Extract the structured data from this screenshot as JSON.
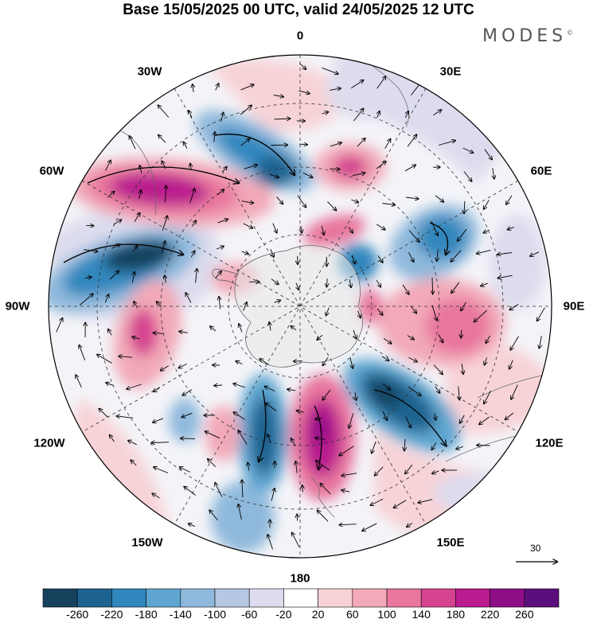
{
  "title": "Base 15/05/2025 00 UTC, valid 24/05/2025 12 UTC",
  "logo": "MODES",
  "logo_mark": "©",
  "longitude_labels": {
    "lon_0": "0",
    "lon_30e": "30E",
    "lon_60e": "60E",
    "lon_90e": "90E",
    "lon_120e": "120E",
    "lon_150e": "150E",
    "lon_180": "180",
    "lon_150w": "150W",
    "lon_120w": "120W",
    "lon_90w": "90W",
    "lon_60w": "60W",
    "lon_30w": "30W"
  },
  "reference_vector": "30",
  "colorbar": {
    "ticks": [
      "-260",
      "-220",
      "-180",
      "-140",
      "-100",
      "-60",
      "-20",
      "20",
      "60",
      "100",
      "140",
      "180",
      "220",
      "260"
    ],
    "colors": [
      "#16425e",
      "#1d6390",
      "#3187bd",
      "#5ea6d0",
      "#8fb9dc",
      "#b6c7e4",
      "#dcdcee",
      "#ffffff",
      "#f7d3d7",
      "#f2a9b8",
      "#e8769e",
      "#d5438f",
      "#ba1b8e",
      "#8e0e87",
      "#5b0f7c"
    ]
  },
  "map": {
    "projection": "south-polar-stereographic",
    "features": [
      {
        "name": "ridge-60w",
        "sign": "positive",
        "lon": -60,
        "r": 0.64,
        "level": 5
      },
      {
        "name": "trough-35w",
        "sign": "negative",
        "lon": -35,
        "r": 0.66,
        "level": 4
      },
      {
        "name": "trough-80w",
        "sign": "negative",
        "lon": -78,
        "r": 0.6,
        "level": 5
      },
      {
        "name": "ridge-100w",
        "sign": "positive",
        "lon": -100,
        "r": 0.62,
        "level": 3
      },
      {
        "name": "trough-155w",
        "sign": "negative",
        "lon": -165,
        "r": 0.55,
        "level": 5
      },
      {
        "name": "ridge-170e",
        "sign": "positive",
        "lon": 172,
        "r": 0.58,
        "level": 6
      },
      {
        "name": "trough-135e",
        "sign": "negative",
        "lon": 135,
        "r": 0.62,
        "level": 5
      },
      {
        "name": "ridge-95e",
        "sign": "positive",
        "lon": 98,
        "r": 0.58,
        "level": 4
      },
      {
        "name": "trough-55e",
        "sign": "negative",
        "lon": 58,
        "r": 0.58,
        "level": 4
      },
      {
        "name": "ridge-20e",
        "sign": "positive",
        "lon": 22,
        "r": 0.42,
        "level": 3
      },
      {
        "name": "trough-15w",
        "sign": "negative",
        "lon": -15,
        "r": 0.42,
        "level": 2
      },
      {
        "name": "ridge-0",
        "sign": "positive",
        "lon": 5,
        "r": 0.27,
        "level": 2
      }
    ]
  }
}
